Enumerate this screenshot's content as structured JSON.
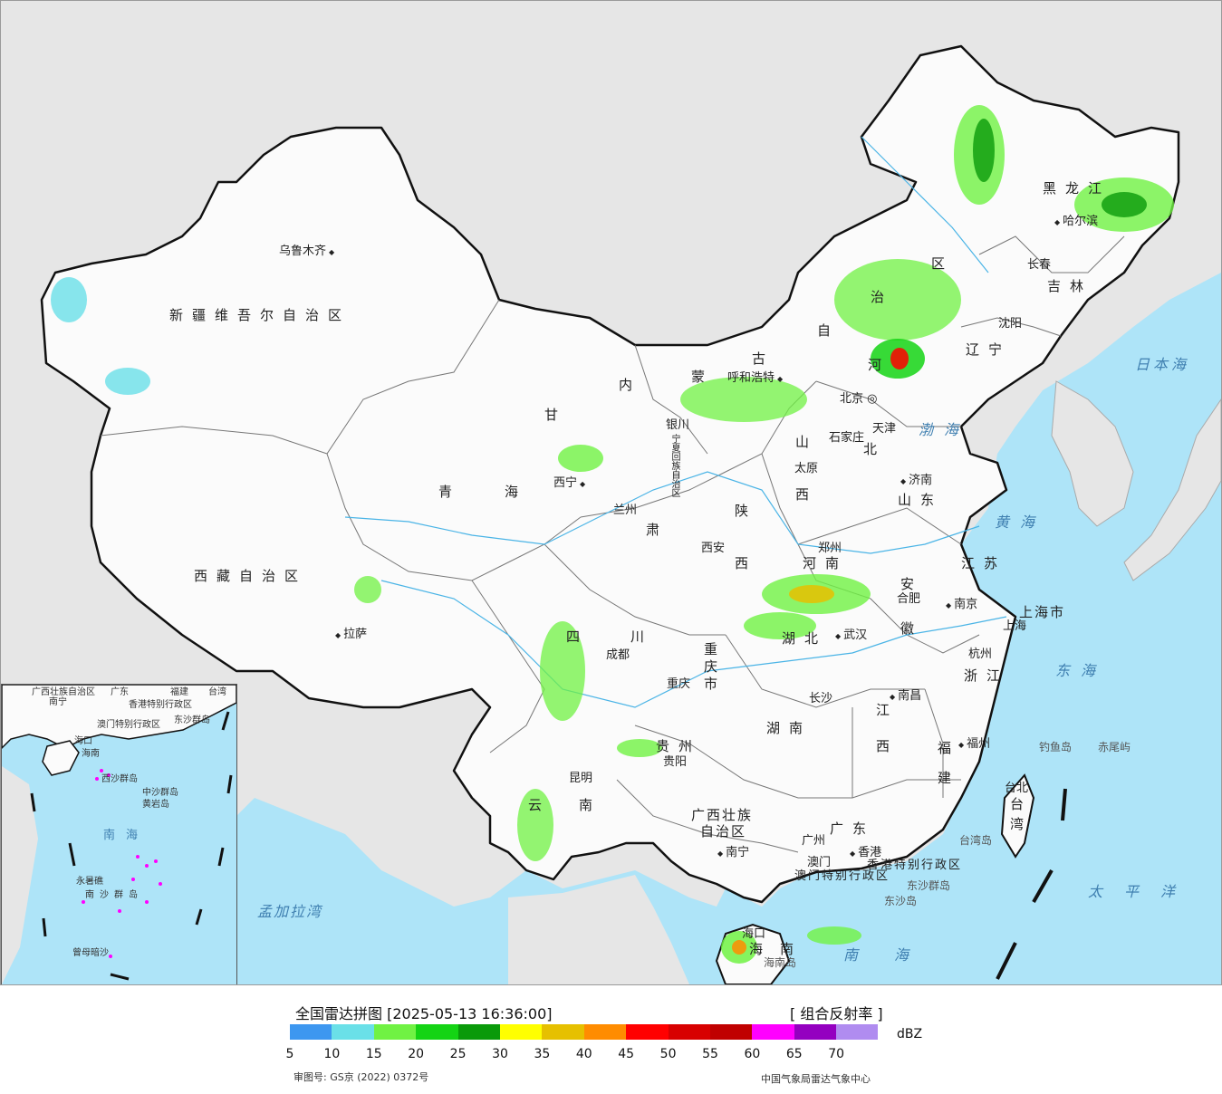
{
  "map": {
    "provinces": [
      {
        "id": "xinjiang",
        "text": "新疆维吾尔自治区"
      },
      {
        "id": "xizang",
        "text": "西藏自治区"
      },
      {
        "id": "qinghai-1",
        "text": "青"
      },
      {
        "id": "qinghai-2",
        "text": "海"
      },
      {
        "id": "gansu-1",
        "text": "甘"
      },
      {
        "id": "gansu-2",
        "text": "肃"
      },
      {
        "id": "neimenggu-1",
        "text": "内"
      },
      {
        "id": "neimenggu-2",
        "text": "蒙"
      },
      {
        "id": "neimenggu-3",
        "text": "古"
      },
      {
        "id": "neimenggu-4",
        "text": "自"
      },
      {
        "id": "neimenggu-5",
        "text": "治"
      },
      {
        "id": "neimenggu-6",
        "text": "区"
      },
      {
        "id": "heilongjiang",
        "text": "黑龙江"
      },
      {
        "id": "jilin",
        "text": "吉林"
      },
      {
        "id": "liaoning",
        "text": "辽宁"
      },
      {
        "id": "hebei-1",
        "text": "河"
      },
      {
        "id": "hebei-2",
        "text": "北"
      },
      {
        "id": "shanxi-1",
        "text": "山"
      },
      {
        "id": "shanxi-2",
        "text": "西"
      },
      {
        "id": "shaanxi-1",
        "text": "陕"
      },
      {
        "id": "shaanxi-2",
        "text": "西"
      },
      {
        "id": "shandong",
        "text": "山东"
      },
      {
        "id": "henan",
        "text": "河南"
      },
      {
        "id": "jiangsu",
        "text": "江苏"
      },
      {
        "id": "anhui-1",
        "text": "安"
      },
      {
        "id": "anhui-2",
        "text": "徽"
      },
      {
        "id": "shanghai",
        "text": "上海市"
      },
      {
        "id": "hubei",
        "text": "湖北"
      },
      {
        "id": "sichuan-1",
        "text": "四"
      },
      {
        "id": "sichuan-2",
        "text": "川"
      },
      {
        "id": "chongqing",
        "text": "重庆市"
      },
      {
        "id": "zhejiang",
        "text": "浙江"
      },
      {
        "id": "jiangxi-1",
        "text": "江"
      },
      {
        "id": "jiangxi-2",
        "text": "西"
      },
      {
        "id": "hunan",
        "text": "湖南"
      },
      {
        "id": "guizhou",
        "text": "贵州"
      },
      {
        "id": "fujian-1",
        "text": "福"
      },
      {
        "id": "fujian-2",
        "text": "建"
      },
      {
        "id": "yunnan-1",
        "text": "云"
      },
      {
        "id": "yunnan-2",
        "text": "南"
      },
      {
        "id": "guangxi-1",
        "text": "广西壮族"
      },
      {
        "id": "guangxi-2",
        "text": "自治区"
      },
      {
        "id": "guangdong",
        "text": "广东"
      },
      {
        "id": "taiwan-1",
        "text": "台"
      },
      {
        "id": "taiwan-2",
        "text": "湾"
      },
      {
        "id": "hainan-1",
        "text": "海"
      },
      {
        "id": "hainan-2",
        "text": "南"
      },
      {
        "id": "ningxia",
        "text": "宁夏回族自治区"
      },
      {
        "id": "hongkong",
        "text": "香港特别行政区"
      },
      {
        "id": "macao",
        "text": "澳门特别行政区"
      }
    ],
    "cities": [
      {
        "id": "urumqi",
        "text": "乌鲁木齐"
      },
      {
        "id": "lhasa",
        "text": "拉萨"
      },
      {
        "id": "xining",
        "text": "西宁"
      },
      {
        "id": "lanzhou",
        "text": "兰州"
      },
      {
        "id": "yinchuan",
        "text": "银川"
      },
      {
        "id": "hohhot",
        "text": "呼和浩特"
      },
      {
        "id": "beijing",
        "text": "北京"
      },
      {
        "id": "tianjin",
        "text": "天津"
      },
      {
        "id": "shijiazhuang",
        "text": "石家庄"
      },
      {
        "id": "taiyuan",
        "text": "太原"
      },
      {
        "id": "jinan",
        "text": "济南"
      },
      {
        "id": "zhengzhou",
        "text": "郑州"
      },
      {
        "id": "xian",
        "text": "西安"
      },
      {
        "id": "hefei",
        "text": "合肥"
      },
      {
        "id": "nanjing",
        "text": "南京"
      },
      {
        "id": "shanghai-city",
        "text": "上海"
      },
      {
        "id": "hangzhou",
        "text": "杭州"
      },
      {
        "id": "wuhan",
        "text": "武汉"
      },
      {
        "id": "chengdu",
        "text": "成都"
      },
      {
        "id": "chongqing-city",
        "text": "重庆"
      },
      {
        "id": "changsha",
        "text": "长沙"
      },
      {
        "id": "nanchang",
        "text": "南昌"
      },
      {
        "id": "fuzhou",
        "text": "福州"
      },
      {
        "id": "guiyang",
        "text": "贵阳"
      },
      {
        "id": "kunming",
        "text": "昆明"
      },
      {
        "id": "nanning",
        "text": "南宁"
      },
      {
        "id": "guangzhou",
        "text": "广州"
      },
      {
        "id": "macao-city",
        "text": "澳门"
      },
      {
        "id": "hongkong-city",
        "text": "香港"
      },
      {
        "id": "haikou",
        "text": "海口"
      },
      {
        "id": "taibei",
        "text": "台北"
      },
      {
        "id": "harbin",
        "text": "哈尔滨"
      },
      {
        "id": "changchun",
        "text": "长春"
      },
      {
        "id": "shenyang",
        "text": "沈阳"
      }
    ],
    "seas": [
      {
        "id": "bohai",
        "text": "渤海"
      },
      {
        "id": "huanghai",
        "text": "黄海"
      },
      {
        "id": "donghai",
        "text": "东海"
      },
      {
        "id": "nanhai",
        "text": "南海"
      },
      {
        "id": "taipingyang",
        "text": "太平洋"
      },
      {
        "id": "ribenhai",
        "text": "日本海"
      },
      {
        "id": "mengjialawan",
        "text": "孟加拉湾"
      }
    ],
    "islands": [
      {
        "id": "diaoyudao",
        "text": "钓鱼岛"
      },
      {
        "id": "chiweiyu",
        "text": "赤尾屿"
      },
      {
        "id": "taiwan-island",
        "text": "台湾岛"
      },
      {
        "id": "dongsha-qundao",
        "text": "东沙群岛"
      },
      {
        "id": "dongshadao",
        "text": "东沙岛"
      },
      {
        "id": "hainandao",
        "text": "海南岛"
      }
    ]
  },
  "inset": {
    "labels": [
      {
        "id": "guangxi",
        "text": "广西壮族自治区"
      },
      {
        "id": "nanning",
        "text": "南宁"
      },
      {
        "id": "guangdong",
        "text": "广东"
      },
      {
        "id": "taiwan",
        "text": "台湾"
      },
      {
        "id": "fujian",
        "text": "福建"
      },
      {
        "id": "hongkong",
        "text": "香港特别行政区"
      },
      {
        "id": "macao",
        "text": "澳门特别行政区"
      },
      {
        "id": "dongsha",
        "text": "东沙群岛"
      },
      {
        "id": "haikou",
        "text": "海口"
      },
      {
        "id": "hainan",
        "text": "海南"
      },
      {
        "id": "xisha",
        "text": "西沙群岛"
      },
      {
        "id": "zhongsha",
        "text": "中沙群岛"
      },
      {
        "id": "huangyan",
        "text": "黄岩岛"
      },
      {
        "id": "nanhai",
        "text": "南海"
      },
      {
        "id": "yongshu",
        "text": "永暑礁"
      },
      {
        "id": "nansha",
        "text": "南沙群岛"
      },
      {
        "id": "zengmu",
        "text": "曾母暗沙"
      }
    ]
  },
  "legend": {
    "title": "全国雷达拼图 [2025-05-13 16:36:00]",
    "product": "[ 组合反射率 ]",
    "unit": "dBZ",
    "colors": [
      "#3d97f0",
      "#6ae0e8",
      "#70f243",
      "#14d414",
      "#0a9a0a",
      "#ffff00",
      "#e6c000",
      "#ff8c00",
      "#ff0000",
      "#d80000",
      "#c00000",
      "#ff00ff",
      "#9400c0",
      "#b08cf0"
    ],
    "ticks": [
      "5",
      "10",
      "15",
      "20",
      "25",
      "30",
      "35",
      "40",
      "45",
      "50",
      "55",
      "60",
      "65",
      "70"
    ],
    "approval": "审图号: GS京 (2022) 0372号",
    "org": "中国气象局雷达气象中心"
  }
}
